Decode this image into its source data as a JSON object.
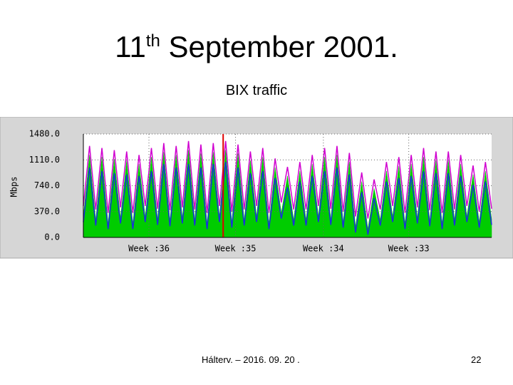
{
  "slide": {
    "title": {
      "number": "11",
      "suffix": "th",
      "rest": "September 2001."
    },
    "footer": "Hálterv. – 2016. 09. 20 .",
    "page_number": "22"
  },
  "chart_data": {
    "type": "area",
    "title": "BIX traffic",
    "y_label": "Mbps",
    "x": [
      0,
      0.5,
      1,
      1.5,
      2,
      2.5,
      3,
      3.5,
      4,
      4.5,
      5,
      5.5,
      6,
      6.5,
      7,
      7.5,
      8,
      8.5,
      9,
      9.5,
      10,
      10.5,
      11,
      11.5,
      12,
      12.5,
      13,
      13.5,
      14,
      14.5,
      15,
      15.5,
      16,
      16.5,
      17,
      17.5,
      18,
      18.5,
      19,
      19.5,
      20,
      20.5,
      21,
      21.5,
      22,
      22.5,
      23,
      23.5,
      24,
      24.5,
      25,
      25.5,
      26,
      26.5,
      27,
      27.5,
      28,
      28.5,
      29,
      29.5,
      30,
      30.5,
      31,
      31.5,
      32,
      32.5,
      33
    ],
    "series": [
      {
        "style": "area",
        "color": "#00cc00",
        "values": [
          300,
          1180,
          250,
          1150,
          200,
          1120,
          280,
          1100,
          200,
          1050,
          300,
          1150,
          260,
          1220,
          240,
          1180,
          280,
          1250,
          250,
          1200,
          200,
          1220,
          300,
          1250,
          220,
          1200,
          250,
          1100,
          300,
          1150,
          200,
          1000,
          350,
          880,
          250,
          950,
          250,
          1050,
          300,
          1150,
          260,
          1180,
          220,
          1080,
          150,
          800,
          120,
          700,
          250,
          950,
          300,
          1020,
          200,
          1050,
          280,
          1150,
          240,
          1100,
          200,
          1100,
          250,
          1050,
          300,
          900,
          220,
          950,
          260
        ]
      },
      {
        "style": "line",
        "color": "#d000d0",
        "values": [
          450,
          1310,
          400,
          1280,
          350,
          1250,
          430,
          1230,
          350,
          1180,
          450,
          1280,
          410,
          1350,
          390,
          1310,
          430,
          1380,
          400,
          1330,
          350,
          1350,
          450,
          1380,
          370,
          1330,
          400,
          1230,
          450,
          1280,
          350,
          1130,
          500,
          1010,
          400,
          1080,
          400,
          1180,
          450,
          1280,
          410,
          1310,
          370,
          1210,
          300,
          930,
          270,
          830,
          400,
          1080,
          450,
          1150,
          350,
          1180,
          430,
          1280,
          390,
          1230,
          350,
          1230,
          400,
          1180,
          450,
          1030,
          370,
          1080,
          410
        ]
      },
      {
        "style": "line",
        "color": "#1a2ee0",
        "values": [
          220,
          1000,
          170,
          950,
          120,
          920,
          200,
          900,
          120,
          880,
          220,
          950,
          180,
          1050,
          160,
          1000,
          200,
          1050,
          170,
          1000,
          120,
          1050,
          220,
          1080,
          140,
          1000,
          170,
          920,
          220,
          950,
          120,
          850,
          270,
          720,
          170,
          800,
          170,
          880,
          220,
          950,
          180,
          1000,
          140,
          900,
          70,
          650,
          40,
          560,
          170,
          800,
          220,
          850,
          120,
          880,
          200,
          950,
          160,
          920,
          120,
          920,
          170,
          880,
          220,
          750,
          140,
          800,
          180
        ]
      }
    ],
    "xlim": [
      0,
      33
    ],
    "xticks": [
      {
        "value": 5.3,
        "label": "Week :36"
      },
      {
        "value": 12.3,
        "label": "Week :35"
      },
      {
        "value": 19.4,
        "label": "Week :34"
      },
      {
        "value": 26.3,
        "label": "Week :33"
      }
    ],
    "ylim": [
      0,
      1480
    ],
    "yticks": [
      {
        "value": 0,
        "label": "0.0"
      },
      {
        "value": 370,
        "label": "370.0"
      },
      {
        "value": 740,
        "label": "740.0"
      },
      {
        "value": 1110,
        "label": "1110.0"
      },
      {
        "value": 1480,
        "label": "1480.0"
      }
    ],
    "grid": true,
    "vline_x": 11.3,
    "vline_color": "#e00000"
  }
}
